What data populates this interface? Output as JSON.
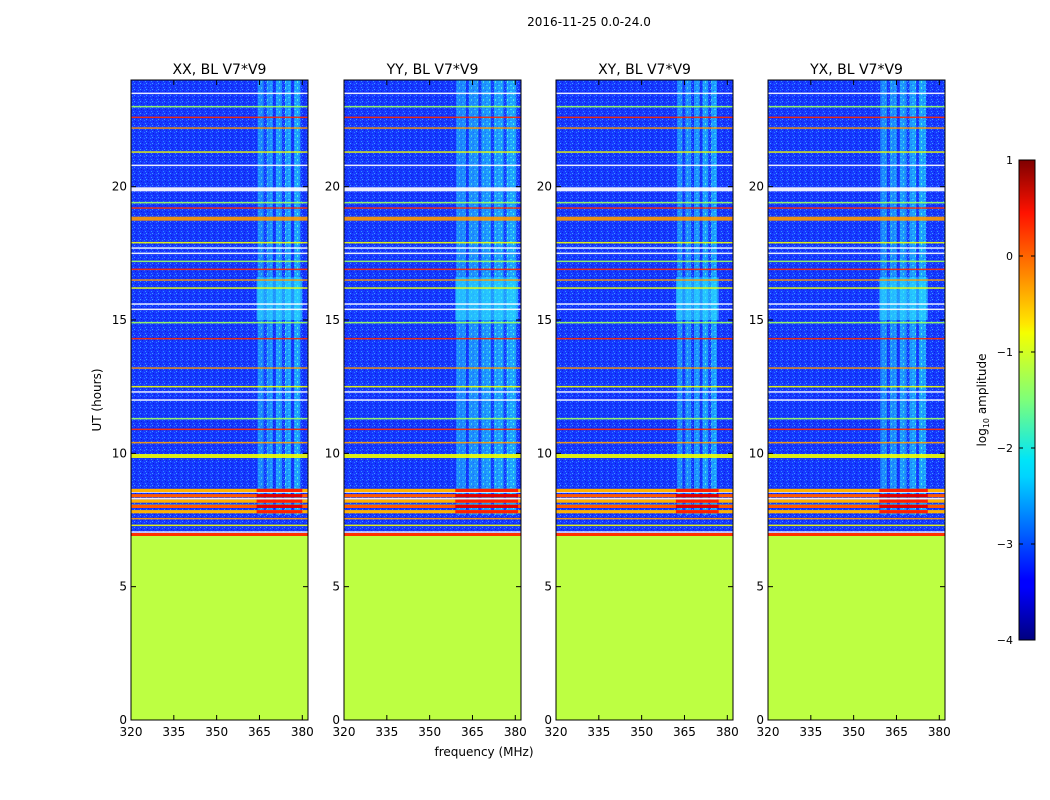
{
  "chart_data": {
    "type": "heatmap",
    "suptitle": "2016-11-25 0.0-24.0",
    "xlabel": "frequency (MHz)",
    "ylabel": "UT (hours)",
    "xlim": [
      320,
      382
    ],
    "ylim": [
      0,
      24
    ],
    "xticks": [
      320,
      335,
      350,
      365,
      380
    ],
    "yticks": [
      0,
      5,
      10,
      15,
      20
    ],
    "panels": [
      {
        "title": "XX, BL V7*V9",
        "bright_band_mhz": [
          364,
          380
        ]
      },
      {
        "title": "YY, BL V7*V9",
        "bright_band_mhz": [
          359,
          381
        ]
      },
      {
        "title": "XY, BL V7*V9",
        "bright_band_mhz": [
          362,
          377
        ]
      },
      {
        "title": "YX, BL V7*V9",
        "bright_band_mhz": [
          359,
          376
        ]
      }
    ],
    "flagged_fill_ut": [
      0,
      6.9
    ],
    "flagged_fill_log_amplitude": -1.2,
    "background_log_amplitude": -3.2,
    "colorbar": {
      "label_main": "log",
      "label_sub": "10",
      "label_tail": " amplitude",
      "min": -4,
      "max": 1,
      "ticks": [
        1,
        0,
        -1,
        -2,
        -3,
        -4
      ],
      "tick_labels": [
        "1",
        "0",
        "−1",
        "−2",
        "−3",
        "−4"
      ],
      "colormap": "jet"
    },
    "rfi_lines_ut": [
      7.05,
      7.3,
      7.55,
      7.8,
      8.05,
      8.3,
      8.55,
      9.9,
      10.4,
      10.9,
      11.3,
      12.0,
      12.3,
      12.5,
      13.2,
      14.3,
      14.9,
      15.4,
      15.6,
      16.2,
      16.5,
      16.9,
      17.2,
      17.5,
      17.7,
      17.9,
      18.8,
      19.2,
      19.4,
      19.9,
      20.8,
      21.3,
      22.2,
      22.6,
      23.0,
      23.5
    ],
    "colors": {
      "flag_fill": "#9aff58",
      "background": "#1a3dff"
    }
  }
}
